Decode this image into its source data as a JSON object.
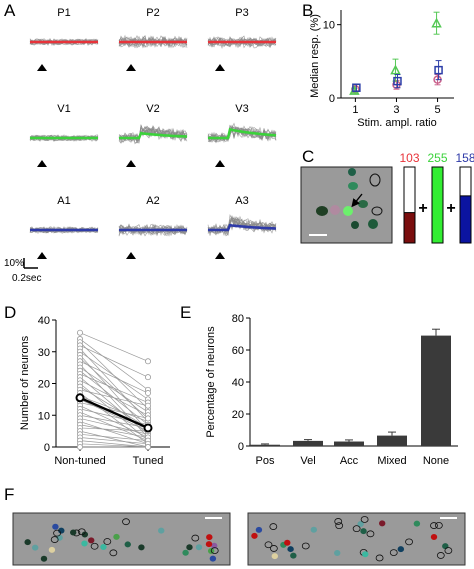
{
  "panel_letters": {
    "A": "A",
    "B": "B",
    "C": "C",
    "D": "D",
    "E": "E",
    "F": "F"
  },
  "panel_a": {
    "rows": [
      {
        "color": "#e8333a",
        "labels": [
          "P1",
          "P2",
          "P3"
        ]
      },
      {
        "color": "#3bd23b",
        "labels": [
          "V1",
          "V2",
          "V3"
        ]
      },
      {
        "color": "#2e3aa8",
        "labels": [
          "A1",
          "A2",
          "A3"
        ]
      }
    ],
    "trace_color": "#8a8a8a",
    "scale_y": "10%",
    "scale_x": "0.2sec"
  },
  "panel_b": {
    "ylabel": "Median resp. (%)",
    "xlabel": "Stim. ampl. ratio",
    "colors": {
      "magenta": "#c9608a",
      "green": "#55c855",
      "blue": "#2c3ea8"
    }
  },
  "panel_c": {
    "bars": [
      {
        "value": "103",
        "color": "#e8333a",
        "fill_color": "#7a0e0e",
        "fill_fraction": 0.4
      },
      {
        "value": "255",
        "color": "#3bd23b",
        "fill_color": "#33ee33",
        "fill_fraction": 1.0
      },
      {
        "value": "158",
        "color": "#2e3aa8",
        "fill_color": "#0b14a0",
        "fill_fraction": 0.62
      }
    ],
    "plus": "+"
  },
  "chart_data": [
    {
      "type": "line",
      "panel": "B",
      "xlabel": "Stim. ampl. ratio",
      "ylabel": "Median resp. (%)",
      "x": [
        1,
        3,
        5
      ],
      "xlim": [
        0.3,
        5.8
      ],
      "ylim": [
        0,
        12
      ],
      "yticks": [
        0,
        10
      ],
      "xticks": [
        1,
        3,
        5
      ],
      "series": [
        {
          "marker": "circle",
          "color": "#c9608a",
          "values": [
            1.2,
            1.8,
            2.5
          ],
          "errors": [
            0.4,
            0.6,
            0.7
          ]
        },
        {
          "marker": "triangle",
          "color": "#55c855",
          "values": [
            1.0,
            3.8,
            10.2
          ],
          "errors": [
            0.3,
            1.5,
            1.5
          ]
        },
        {
          "marker": "square",
          "color": "#2c3ea8",
          "values": [
            1.4,
            2.3,
            3.8
          ],
          "errors": [
            0.5,
            0.9,
            1.3
          ]
        }
      ]
    },
    {
      "type": "line",
      "panel": "D",
      "ylabel": "Number of neurons",
      "categories": [
        "Non-tuned",
        "Tuned"
      ],
      "ylim": [
        0,
        40
      ],
      "yticks": [
        0,
        10,
        20,
        30,
        40
      ],
      "mean": [
        15.5,
        6
      ],
      "pairs": [
        [
          36,
          27
        ],
        [
          34,
          18
        ],
        [
          33,
          12
        ],
        [
          32,
          22
        ],
        [
          31,
          8
        ],
        [
          30,
          15
        ],
        [
          29,
          5
        ],
        [
          28,
          9
        ],
        [
          27,
          17
        ],
        [
          26,
          3
        ],
        [
          25,
          11
        ],
        [
          24,
          7
        ],
        [
          23,
          14
        ],
        [
          22,
          4
        ],
        [
          21,
          10
        ],
        [
          20,
          2
        ],
        [
          19,
          6
        ],
        [
          18,
          13
        ],
        [
          17,
          1
        ],
        [
          16,
          8
        ],
        [
          15,
          5
        ],
        [
          14,
          9
        ],
        [
          13,
          3
        ],
        [
          12,
          7
        ],
        [
          11,
          2
        ],
        [
          10,
          6
        ],
        [
          9,
          4
        ],
        [
          8,
          1
        ],
        [
          7,
          3
        ],
        [
          6,
          5
        ],
        [
          5,
          0
        ],
        [
          4,
          2
        ],
        [
          3,
          1
        ],
        [
          2,
          0
        ],
        [
          1,
          0
        ],
        [
          0,
          0
        ]
      ]
    },
    {
      "type": "bar",
      "panel": "E",
      "ylabel": "Percentage of neurons",
      "categories": [
        "Pos",
        "Vel",
        "Acc",
        "Mixed",
        "None"
      ],
      "values": [
        0.8,
        3.2,
        2.8,
        6.5,
        69
      ],
      "errors": [
        0.5,
        0.8,
        1.0,
        2.2,
        4.0
      ],
      "ylim": [
        0,
        80
      ],
      "yticks": [
        0,
        20,
        40,
        60,
        80
      ]
    }
  ]
}
